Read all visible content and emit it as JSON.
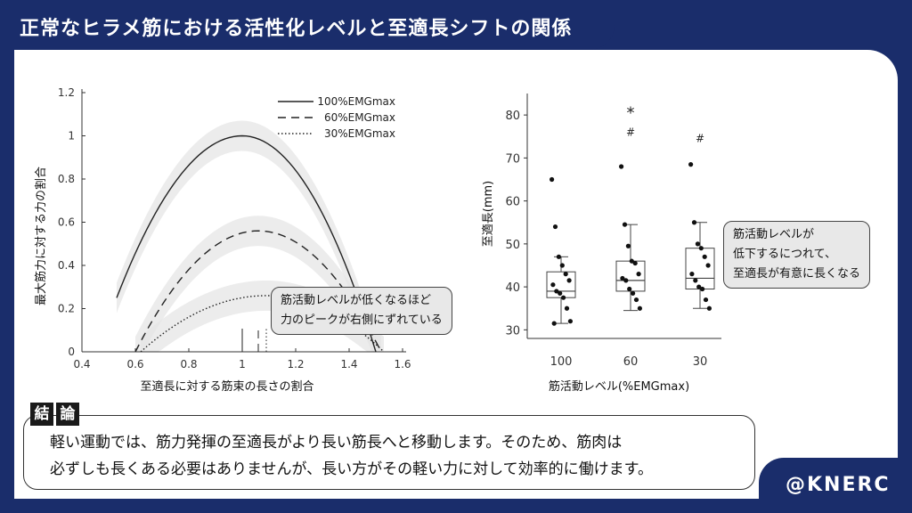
{
  "title": "正常なヒラメ筋における活性化レベルと至適長シフトの関係",
  "brand": "@KNERC",
  "conclusion": {
    "tag1": "結",
    "tag2": "論",
    "line1": "軽い運動では、筋力発揮の至適長がより長い筋長へと移動します。そのため、筋肉は",
    "line2": "必ずしも長くある必要はありませんが、長い方がその軽い力に対して効率的に働けます。"
  },
  "callout_left": {
    "line1": "筋活動レベルが低くなるほど",
    "line2": "力のピークが右側にずれている"
  },
  "callout_right": {
    "line1": "筋活動レベルが",
    "line2": "低下するにつれて、",
    "line3": "至適長が有意に長くなる"
  },
  "chart_data": [
    {
      "type": "line",
      "xlabel": "至適長に対する筋束の長さの割合",
      "ylabel": "最大筋力に対する力の割合",
      "xlim": [
        0.4,
        1.6
      ],
      "ylim": [
        0,
        1.2
      ],
      "xticks": [
        "0.4",
        "0.6",
        "0.8",
        "1",
        "1.2",
        "1.4",
        "1.6"
      ],
      "yticks": [
        "0",
        "0.2",
        "0.4",
        "0.6",
        "0.8",
        "1",
        "1.2"
      ],
      "legend_position": "top-right",
      "series": [
        {
          "name": "100%EMGmax",
          "style": "solid",
          "peak_x": 1.0,
          "peak_y": 1.0,
          "x_start": 0.53,
          "x_end": 1.5,
          "y_start": 0.25
        },
        {
          "name": "60%EMGmax",
          "style": "dashed",
          "peak_x": 1.06,
          "peak_y": 0.56,
          "x_start": 0.6,
          "x_end": 1.52,
          "y_start": 0.0
        },
        {
          "name": "30%EMGmax",
          "style": "dotted",
          "peak_x": 1.09,
          "peak_y": 0.26,
          "x_start": 0.62,
          "x_end": 1.53,
          "y_start": 0.0
        }
      ],
      "peak_markers": [
        1.0,
        1.06,
        1.09
      ]
    },
    {
      "type": "scatter",
      "xlabel": "筋活動レベル(%EMGmax)",
      "ylabel": "至適長(mm)",
      "ylim": [
        28,
        85
      ],
      "yticks": [
        "30",
        "40",
        "50",
        "60",
        "70",
        "80"
      ],
      "categories": [
        "100",
        "60",
        "30"
      ],
      "annotations": [
        {
          "category": "60",
          "symbol": "*",
          "y": 81
        },
        {
          "category": "60",
          "symbol": "#",
          "y": 76
        },
        {
          "category": "30",
          "symbol": "#",
          "y": 74.5
        }
      ],
      "boxes": [
        {
          "category": "100",
          "q1": 37.5,
          "median": 39,
          "q3": 43.5,
          "whisker_low": 31.5,
          "whisker_high": 47
        },
        {
          "category": "60",
          "q1": 39,
          "median": 41.5,
          "q3": 46,
          "whisker_low": 34.5,
          "whisker_high": 54.5
        },
        {
          "category": "30",
          "q1": 39.5,
          "median": 42,
          "q3": 49,
          "whisker_low": 35,
          "whisker_high": 55
        }
      ],
      "points": {
        "100": [
          65,
          54,
          47,
          45,
          43,
          41.5,
          40.5,
          39,
          38.5,
          37.5,
          35,
          32,
          31.5
        ],
        "60": [
          68,
          54.5,
          49.5,
          46,
          45.5,
          43,
          42,
          41.5,
          39.5,
          38.5,
          37,
          35
        ],
        "30": [
          68.5,
          55,
          50,
          49,
          47,
          45,
          43,
          41.5,
          40,
          39.5,
          37,
          35
        ]
      }
    }
  ]
}
